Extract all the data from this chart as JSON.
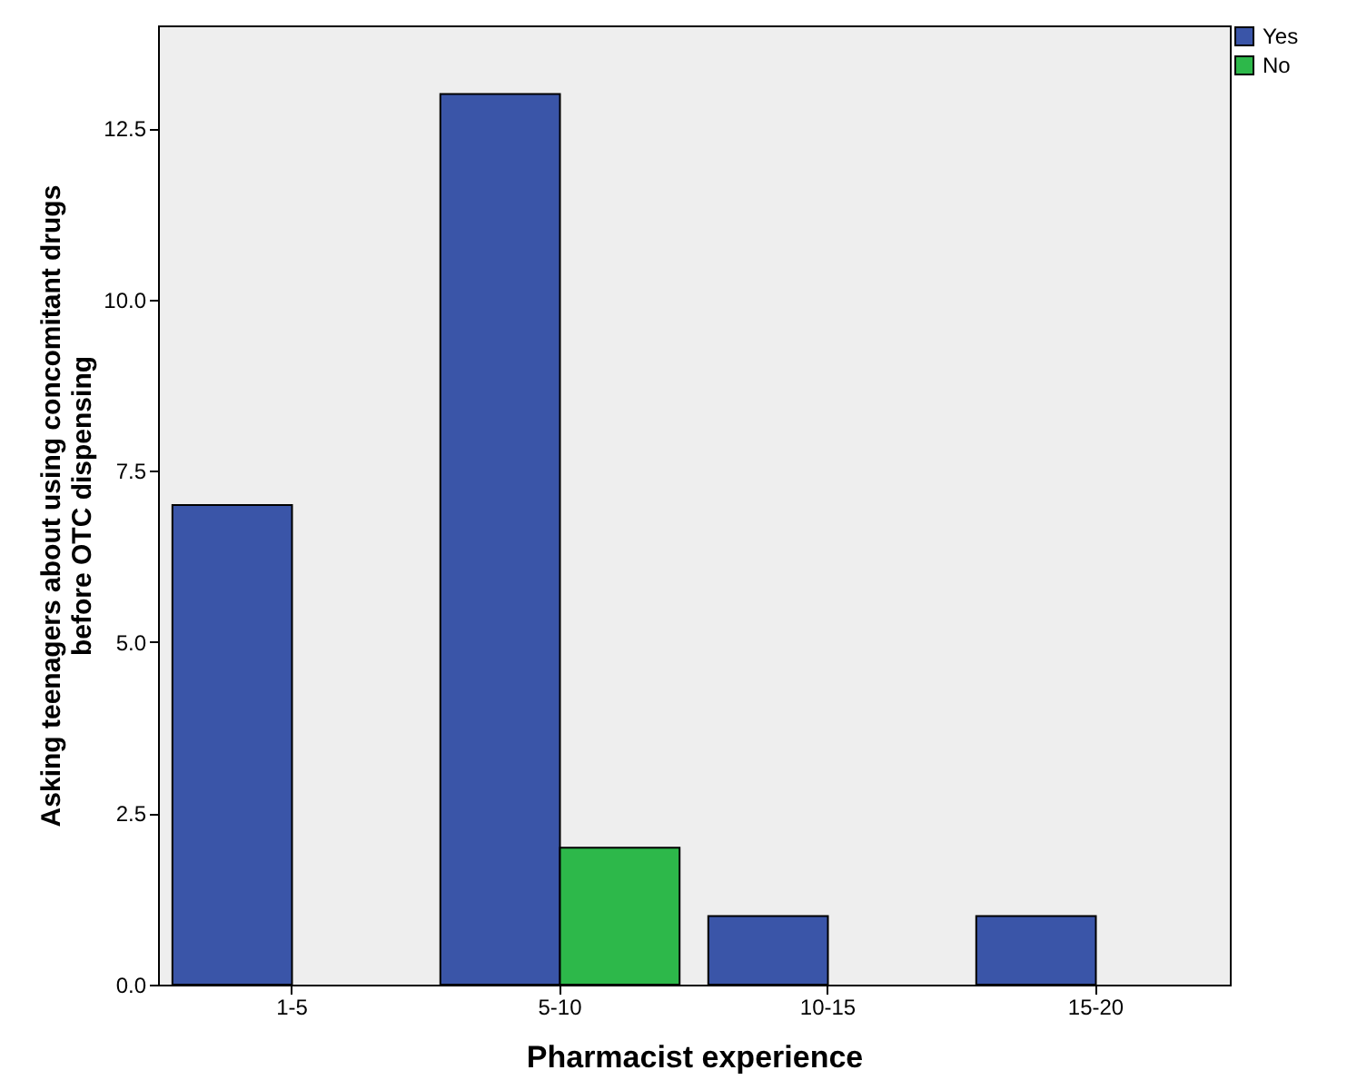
{
  "chart_data": {
    "type": "bar",
    "xlabel": "Pharmacist experience",
    "ylabel": "Asking teenagers about using concomitant drugs before OTC dispensing",
    "categories": [
      "1-5",
      "5-10",
      "10-15",
      "15-20"
    ],
    "series": [
      {
        "name": "Yes",
        "color": "#3a55a8",
        "values": [
          7,
          13,
          1,
          1
        ]
      },
      {
        "name": "No",
        "color": "#2db84a",
        "values": [
          null,
          2,
          null,
          null
        ]
      }
    ],
    "ylim": [
      0,
      14
    ],
    "yticks": [
      {
        "value": 0,
        "label": "0.0"
      },
      {
        "value": 2.5,
        "label": "2.5"
      },
      {
        "value": 5,
        "label": "5.0"
      },
      {
        "value": 7.5,
        "label": "7.5"
      },
      {
        "value": 10,
        "label": "10.0"
      },
      {
        "value": 12.5,
        "label": "12.5"
      }
    ],
    "grid": false,
    "legend": "top right"
  }
}
